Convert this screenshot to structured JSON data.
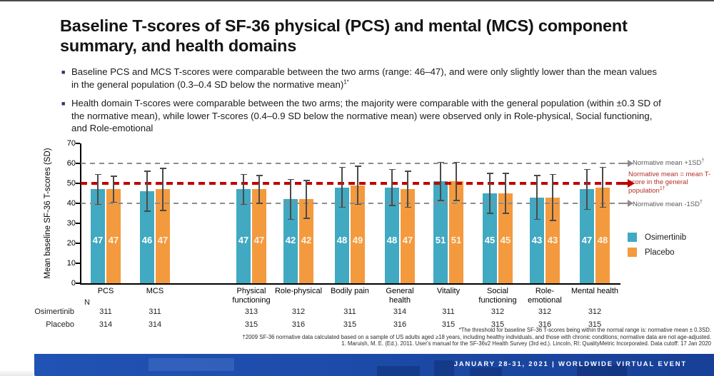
{
  "slide": {
    "title": "Baseline T-scores of SF-36 physical (PCS) and mental (MCS) component summary, and health domains",
    "bullets": [
      {
        "text": "Baseline PCS and MCS T-scores were comparable between the two arms (range: 46–47), and were only slightly lower than the mean values in the general population (0.3–0.4 SD below the normative mean)",
        "sup": "1*"
      },
      {
        "text": "Health domain T-scores were comparable between the two arms; the majority were comparable with the general population (within ±0.3 SD of the normative mean), while lower T-scores (0.4–0.9 SD below the normative mean) were observed only in Role-physical, Social functioning, and Role-emotional",
        "sup": ""
      }
    ]
  },
  "chart_data": {
    "type": "bar",
    "title": "",
    "ylabel": "Mean baseline SF-36 T-scores (SD)",
    "ylim": [
      0,
      70
    ],
    "yticks": [
      0,
      10,
      20,
      30,
      40,
      50,
      60,
      70
    ],
    "grid": false,
    "legend_position": "right",
    "categories": [
      "PCS",
      "MCS",
      "Physical functioning",
      "Role-physical",
      "Bodily pain",
      "General health",
      "Vitality",
      "Social functioning",
      "Role-emotional",
      "Mental health"
    ],
    "series": [
      {
        "name": "Osimertinib",
        "color": "#41A9C1",
        "label_color": "#ffffff",
        "values": [
          47,
          46,
          47,
          42,
          48,
          48,
          51,
          45,
          43,
          47
        ],
        "errors": [
          7.5,
          10,
          7.5,
          10,
          10,
          9,
          9.5,
          10,
          11,
          10
        ]
      },
      {
        "name": "Placebo",
        "color": "#F49A3E",
        "label_color": "#fdf3e2",
        "values": [
          47,
          47,
          47,
          42,
          49,
          47,
          51,
          45,
          43,
          48
        ],
        "errors": [
          6.5,
          10.5,
          7,
          9.5,
          9.5,
          9,
          9.5,
          10,
          11.5,
          10
        ]
      }
    ],
    "reference_lines": [
      {
        "value": 60,
        "color": "#8C8C8C",
        "style": "dashed",
        "label": "Normative mean +1SD",
        "sup": "†"
      },
      {
        "value": 50,
        "color": "#C00000",
        "style": "dashed-bold",
        "label": "Normative mean = mean T-score in the general population",
        "sup": "1†"
      },
      {
        "value": 40,
        "color": "#8C8C8C",
        "style": "dashed",
        "label": "Normative mean -1SD",
        "sup": "†"
      }
    ]
  },
  "n_table": {
    "header": "N",
    "rows": [
      {
        "label": "Osimertinib",
        "values": [
          311,
          311,
          313,
          312,
          311,
          314,
          311,
          312,
          312,
          312
        ]
      },
      {
        "label": "Placebo",
        "values": [
          314,
          314,
          315,
          316,
          315,
          316,
          315,
          315,
          316,
          315
        ]
      }
    ]
  },
  "footnotes": [
    "*The threshold for baseline SF-36 T-scores being within the normal range is: normative mean ± 0.3SD.",
    "†2009 SF-36 normative data calculated based on a sample of US adults aged ≥18 years, including healthy individuals, and those with chronic conditions; normative data are not age-adjusted.",
    "1. Maruish, M. E. (Ed.). 2011. User's manual for the SF-36v2 Health Survey (3rd ed.). Lincoln, RI: QualityMetric Incorporated. Data cutoff: 17 Jan 2020"
  ],
  "banner": {
    "text": "JANUARY 28-31, 2021 | WORLDWIDE VIRTUAL EVENT"
  }
}
